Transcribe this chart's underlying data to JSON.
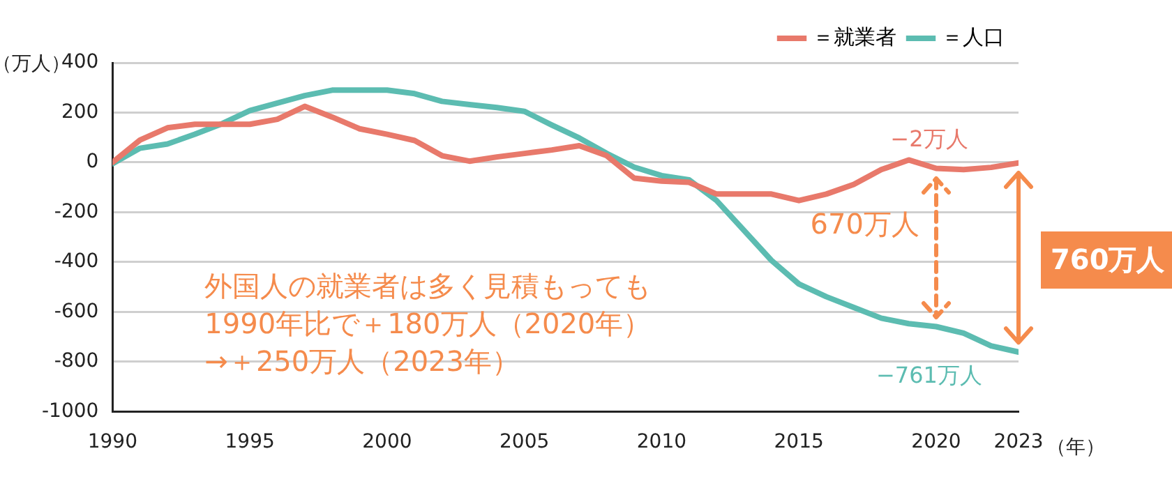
{
  "chart_data": {
    "type": "line",
    "ylabel": "（万人）",
    "xlabel": "（年）",
    "x": [
      1990,
      1991,
      1992,
      1993,
      1994,
      1995,
      1996,
      1997,
      1998,
      1999,
      2000,
      2001,
      2002,
      2003,
      2004,
      2005,
      2006,
      2007,
      2008,
      2009,
      2010,
      2011,
      2012,
      2013,
      2014,
      2015,
      2016,
      2017,
      2018,
      2019,
      2020,
      2021,
      2022,
      2023
    ],
    "series": [
      {
        "name": "＝就業者",
        "color": "#e8796b",
        "values": [
          0,
          90,
          139,
          153,
          153,
          153,
          173,
          225,
          182,
          135,
          113,
          88,
          27,
          5,
          22,
          36,
          50,
          67,
          27,
          -63,
          -75,
          -80,
          -127,
          -127,
          -127,
          -153,
          -127,
          -88,
          -29,
          10,
          -24,
          -29,
          -20,
          -2
        ]
      },
      {
        "name": "＝人口",
        "color": "#5cbcb1",
        "values": [
          -5,
          57,
          74,
          113,
          156,
          208,
          238,
          268,
          290,
          290,
          290,
          276,
          245,
          232,
          220,
          205,
          150,
          98,
          36,
          -19,
          -53,
          -70,
          -153,
          -273,
          -393,
          -488,
          -539,
          -582,
          -625,
          -647,
          -659,
          -685,
          -736,
          -761
        ]
      }
    ],
    "xlim": [
      1990,
      2023
    ],
    "xticks": [
      1990,
      1995,
      2000,
      2005,
      2010,
      2015,
      2020,
      2023
    ],
    "ylim": [
      -1000,
      400
    ],
    "yticks": [
      -1000,
      -800,
      -600,
      -400,
      -200,
      0,
      200,
      400
    ],
    "grid": "y",
    "legend": "top right",
    "marker": "none",
    "line_style": "solid",
    "annotations": [
      "−2万人",
      "−761万人",
      "670万人",
      "760万人",
      "外国人の就業者は多く見積もっても\n1990年比で＋180万人（2020年）\n→＋250万人（2023年）"
    ]
  }
}
